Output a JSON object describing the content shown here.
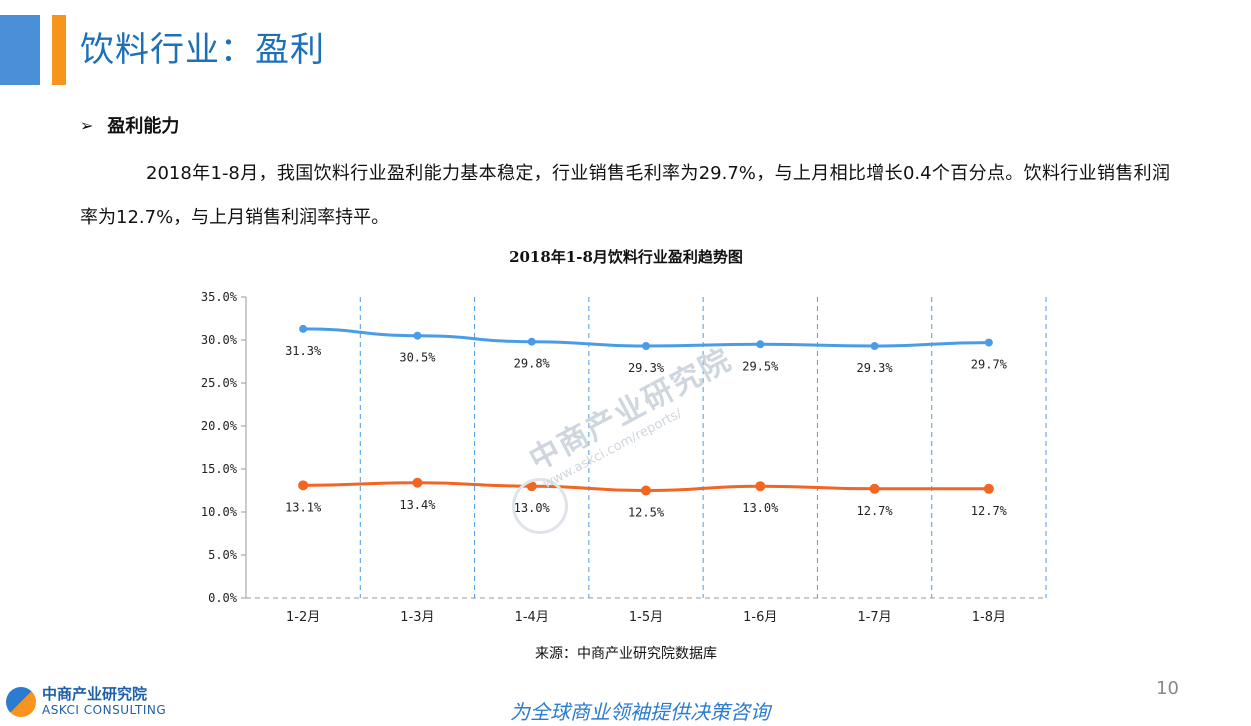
{
  "header": {
    "title": "饮料行业：盈利"
  },
  "section": {
    "bullet": "➢",
    "title": "盈利能力"
  },
  "paragraph": "2018年1-8月，我国饮料行业盈利能力基本稳定，行业销售毛利率为29.7%，与上月相比增长0.4个百分点。饮料行业销售利润率为12.7%，与上月销售利润率持平。",
  "chart_data": {
    "type": "line",
    "title": "2018年1-8月饮料行业盈利趋势图",
    "categories": [
      "1-2月",
      "1-3月",
      "1-4月",
      "1-5月",
      "1-6月",
      "1-7月",
      "1-8月"
    ],
    "series": [
      {
        "values": [
          31.3,
          30.5,
          29.8,
          29.3,
          29.5,
          29.3,
          29.7
        ],
        "labels": [
          "31.3%",
          "30.5%",
          "29.8%",
          "29.3%",
          "29.5%",
          "29.3%",
          "29.7%"
        ],
        "color": "#4a9ce8"
      },
      {
        "values": [
          13.1,
          13.4,
          13.0,
          12.5,
          13.0,
          12.7,
          12.7
        ],
        "labels": [
          "13.1%",
          "13.4%",
          "13.0%",
          "12.5%",
          "13.0%",
          "12.7%",
          "12.7%"
        ],
        "color": "#f26522"
      }
    ],
    "yticks": [
      "0.0%",
      "5.0%",
      "10.0%",
      "15.0%",
      "20.0%",
      "25.0%",
      "30.0%",
      "35.0%"
    ],
    "ylim": [
      0,
      35
    ],
    "grid": "vertical-dashed",
    "source": "来源：中商产业研究院数据库"
  },
  "watermark": {
    "cn": "中商产业研究院",
    "url": "www.askci.com/reports/"
  },
  "footer": {
    "page_number": "10",
    "logo_cn": "中商产业研究院",
    "logo_en": "ASKCI CONSULTING",
    "slogan": "为全球商业领袖提供决策咨询"
  },
  "colors": {
    "accent_blue": "#4a90d9",
    "accent_orange": "#f7941d",
    "title_blue": "#1d6fb8"
  }
}
